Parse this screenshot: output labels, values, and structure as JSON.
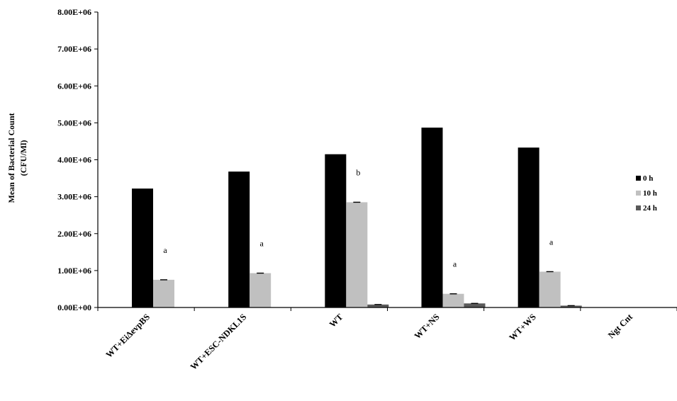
{
  "chart_data": {
    "type": "bar",
    "ylabel_line1": "Mean of Bacterial Count",
    "ylabel_line2": "(CFU/Ml)",
    "xlabel": "",
    "ylim": [
      0,
      8000000
    ],
    "ytick_values": [
      0,
      1000000,
      2000000,
      3000000,
      4000000,
      5000000,
      6000000,
      7000000,
      8000000
    ],
    "ytick_labels": [
      "0.00E+00",
      "1.00E+06",
      "2.00E+06",
      "3.00E+06",
      "4.00E+06",
      "5.00E+06",
      "6.00E+06",
      "7.00E+06",
      "8.00E+06"
    ],
    "categories": [
      "WT+EiΔevpBS",
      "WT+ESC-NDKL1S",
      "WT",
      "WT+NS",
      "WT+WS",
      "Ngt Cnt"
    ],
    "series": [
      {
        "name": "0 h",
        "color": "#000000",
        "values": [
          3220000,
          3680000,
          4150000,
          4870000,
          4330000,
          0
        ]
      },
      {
        "name": "10 h",
        "color": "#c0c0c0",
        "values": [
          750000,
          930000,
          2850000,
          370000,
          970000,
          0
        ]
      },
      {
        "name": "24 h",
        "color": "#595959",
        "values": [
          0,
          0,
          80000,
          110000,
          50000,
          0
        ]
      }
    ],
    "annotations": [
      "a",
      "a",
      "b",
      "a",
      "a",
      ""
    ],
    "grid": false,
    "legend_position": "right"
  }
}
